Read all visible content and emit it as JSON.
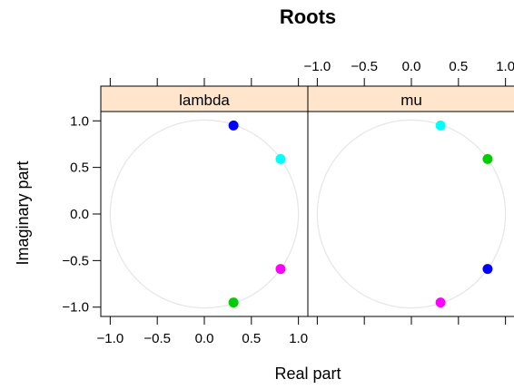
{
  "chart_data": {
    "type": "scatter",
    "title": "Roots",
    "xlabel": "Real part",
    "ylabel": "Imaginary part",
    "xlim": [
      -1.1,
      1.1
    ],
    "ylim": [
      -1.1,
      1.1
    ],
    "x_ticks": [
      "−1.0",
      "−0.5",
      "0.0",
      "0.5",
      "1.0"
    ],
    "x_tick_values": [
      -1.0,
      -0.5,
      0.0,
      0.5,
      1.0
    ],
    "y_ticks": [
      "1.0",
      "0.5",
      "0.0",
      "−0.5",
      "−1.0"
    ],
    "y_tick_values": [
      1.0,
      0.5,
      0.0,
      -0.5,
      -1.0
    ],
    "unit_circle": true,
    "grid": false,
    "strip_color": "#ffe5cc",
    "circle_color": "#e6e6e6",
    "panels": [
      {
        "strip_label": "lambda",
        "points": [
          {
            "x": 0.31,
            "y": 0.95,
            "color": "#0000ff"
          },
          {
            "x": 0.81,
            "y": 0.59,
            "color": "#00ffff"
          },
          {
            "x": 0.81,
            "y": -0.59,
            "color": "#ff00ff"
          },
          {
            "x": 0.31,
            "y": -0.95,
            "color": "#00cd00"
          }
        ]
      },
      {
        "strip_label": "mu",
        "points": [
          {
            "x": 0.31,
            "y": 0.95,
            "color": "#00ffff"
          },
          {
            "x": 0.81,
            "y": 0.59,
            "color": "#00cd00"
          },
          {
            "x": 0.81,
            "y": -0.59,
            "color": "#0000ff"
          },
          {
            "x": 0.31,
            "y": -0.95,
            "color": "#ff00ff"
          }
        ]
      }
    ]
  }
}
